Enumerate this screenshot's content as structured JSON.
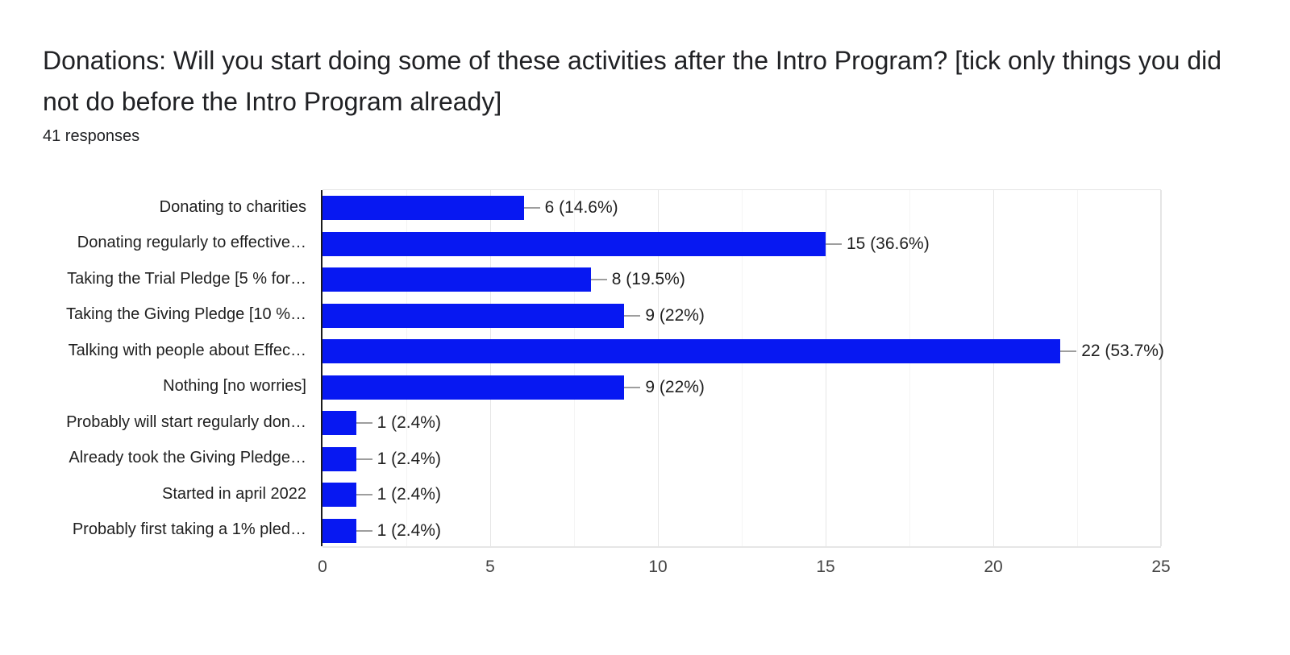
{
  "header": {
    "title": "Donations: Will you start doing some of these activities after the Intro Program? [tick only things you did not do before the Intro Program already]",
    "responses_label": "41 responses"
  },
  "colors": {
    "bar": "#0718f2",
    "axis": "#1a1a1a",
    "grid_major": "#e6e6e6",
    "grid_minor": "#f4f4f4",
    "connector": "#9e9e9e",
    "label_text": "#1f1f1f",
    "tick_text": "#444444",
    "title_text": "#202124"
  },
  "chart_data": {
    "type": "bar",
    "orientation": "horizontal",
    "title": "Donations: Will you start doing some of these activities after the Intro Program? [tick only things you did not do before the Intro Program already]",
    "subtitle": "41 responses",
    "categories": [
      "Donating to charities",
      "Donating regularly to effective…",
      "Taking the Trial Pledge [5 % for…",
      "Taking the Giving Pledge [10 %…",
      "Talking with people about Effec…",
      "Nothing [no worries]",
      "Probably will start regularly don…",
      "Already took the Giving Pledge…",
      "Started in april 2022",
      "Probably first taking a 1% pled…"
    ],
    "values": [
      6,
      15,
      8,
      9,
      22,
      9,
      1,
      1,
      1,
      1
    ],
    "value_labels": [
      "6 (14.6%)",
      "15 (36.6%)",
      "8 (19.5%)",
      "9 (22%)",
      "22 (53.7%)",
      "9 (22%)",
      "1 (2.4%)",
      "1 (2.4%)",
      "1 (2.4%)",
      "1 (2.4%)"
    ],
    "xlim": [
      0,
      25
    ],
    "x_ticks": [
      0,
      5,
      10,
      15,
      20,
      25
    ],
    "x_minor_gridlines": [
      2.5,
      7.5,
      12.5,
      17.5,
      22.5
    ],
    "grid": true,
    "legend": "none"
  }
}
